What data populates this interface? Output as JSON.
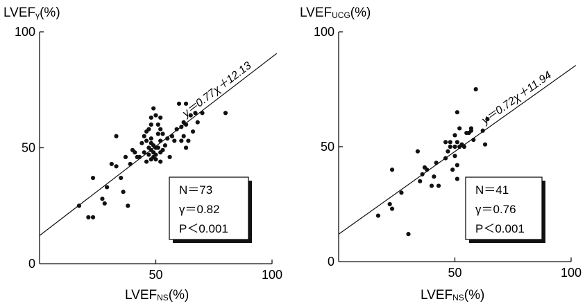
{
  "chart_data": [
    {
      "type": "scatter",
      "ylabel": {
        "main": "LVEF",
        "sub": "γ",
        "unit": "(%)"
      },
      "xlabel": {
        "main": "LVEF",
        "sub": "NS",
        "unit": "(%)"
      },
      "xlim": [
        0,
        100
      ],
      "ylim": [
        0,
        100
      ],
      "xticks": [
        "50",
        "100"
      ],
      "yticks": [
        "0",
        "50",
        "100"
      ],
      "regression": {
        "slope": 0.77,
        "intercept": 12.13,
        "label": "y＝0.77χ＋12.13"
      },
      "stats": {
        "n": "N＝73",
        "r": "γ＝0.82",
        "p": "P＜0.001"
      },
      "points": [
        [
          17,
          25
        ],
        [
          21,
          20
        ],
        [
          23,
          20
        ],
        [
          23,
          37
        ],
        [
          27,
          28
        ],
        [
          28,
          26
        ],
        [
          29,
          33
        ],
        [
          31,
          43
        ],
        [
          33,
          55
        ],
        [
          33,
          42
        ],
        [
          35,
          37
        ],
        [
          36,
          31
        ],
        [
          37,
          46
        ],
        [
          38,
          25
        ],
        [
          39,
          43
        ],
        [
          40,
          49
        ],
        [
          41,
          48
        ],
        [
          42,
          46
        ],
        [
          43,
          46
        ],
        [
          44,
          52
        ],
        [
          45,
          48
        ],
        [
          45,
          55
        ],
        [
          46,
          53
        ],
        [
          46,
          57
        ],
        [
          46,
          44
        ],
        [
          47,
          50
        ],
        [
          47,
          47
        ],
        [
          47,
          58
        ],
        [
          48,
          63
        ],
        [
          48,
          60
        ],
        [
          48,
          54
        ],
        [
          48,
          52
        ],
        [
          48,
          49
        ],
        [
          48,
          45
        ],
        [
          49,
          67
        ],
        [
          49,
          51
        ],
        [
          49,
          48
        ],
        [
          49,
          46
        ],
        [
          50,
          64
        ],
        [
          50,
          50
        ],
        [
          50,
          47
        ],
        [
          50,
          45
        ],
        [
          51,
          60
        ],
        [
          51,
          56
        ],
        [
          51,
          50
        ],
        [
          52,
          63
        ],
        [
          52,
          58
        ],
        [
          52,
          53
        ],
        [
          52,
          48
        ],
        [
          52,
          44
        ],
        [
          53,
          56
        ],
        [
          53,
          49
        ],
        [
          54,
          51
        ],
        [
          55,
          54
        ],
        [
          56,
          46
        ],
        [
          57,
          55
        ],
        [
          58,
          53
        ],
        [
          59,
          58
        ],
        [
          60,
          69
        ],
        [
          61,
          59
        ],
        [
          61,
          53
        ],
        [
          62,
          55
        ],
        [
          62,
          61
        ],
        [
          63,
          50
        ],
        [
          63,
          60
        ],
        [
          63,
          69
        ],
        [
          64,
          53
        ],
        [
          65,
          64
        ],
        [
          66,
          57
        ],
        [
          67,
          65
        ],
        [
          68,
          61
        ],
        [
          70,
          65
        ],
        [
          80,
          65
        ]
      ]
    },
    {
      "type": "scatter",
      "ylabel": {
        "main": "LVEF",
        "sub": "UCG",
        "unit": "(%)"
      },
      "xlabel": {
        "main": "LVEF",
        "sub": "NS",
        "unit": "(%)"
      },
      "xlim": [
        0,
        100
      ],
      "ylim": [
        0,
        100
      ],
      "xticks": [
        "50",
        "100"
      ],
      "yticks": [
        "0",
        "50",
        "100"
      ],
      "regression": {
        "slope": 0.72,
        "intercept": 11.94,
        "label": "y＝0.72χ＋11.94"
      },
      "stats": {
        "n": "N＝41",
        "r": "γ＝0.76",
        "p": "P＜0.001"
      },
      "points": [
        [
          17,
          20
        ],
        [
          22,
          25
        ],
        [
          23,
          40
        ],
        [
          23,
          23
        ],
        [
          27,
          30
        ],
        [
          30,
          12
        ],
        [
          34,
          48
        ],
        [
          35,
          35
        ],
        [
          36,
          38
        ],
        [
          37,
          41
        ],
        [
          38,
          40
        ],
        [
          40,
          33
        ],
        [
          41,
          37
        ],
        [
          42,
          43
        ],
        [
          43,
          33
        ],
        [
          46,
          52
        ],
        [
          46,
          45
        ],
        [
          47,
          48
        ],
        [
          48,
          50
        ],
        [
          48,
          52
        ],
        [
          49,
          40
        ],
        [
          50,
          50
        ],
        [
          50,
          55
        ],
        [
          50,
          46
        ],
        [
          51,
          52
        ],
        [
          51,
          42
        ],
        [
          51,
          36
        ],
        [
          51,
          65
        ],
        [
          52,
          58
        ],
        [
          52,
          50
        ],
        [
          53,
          51
        ],
        [
          54,
          50
        ],
        [
          55,
          56
        ],
        [
          56,
          56
        ],
        [
          57,
          58
        ],
        [
          57,
          57
        ],
        [
          58,
          53
        ],
        [
          59,
          75
        ],
        [
          62,
          57
        ],
        [
          63,
          51
        ],
        [
          64,
          62
        ]
      ]
    }
  ]
}
